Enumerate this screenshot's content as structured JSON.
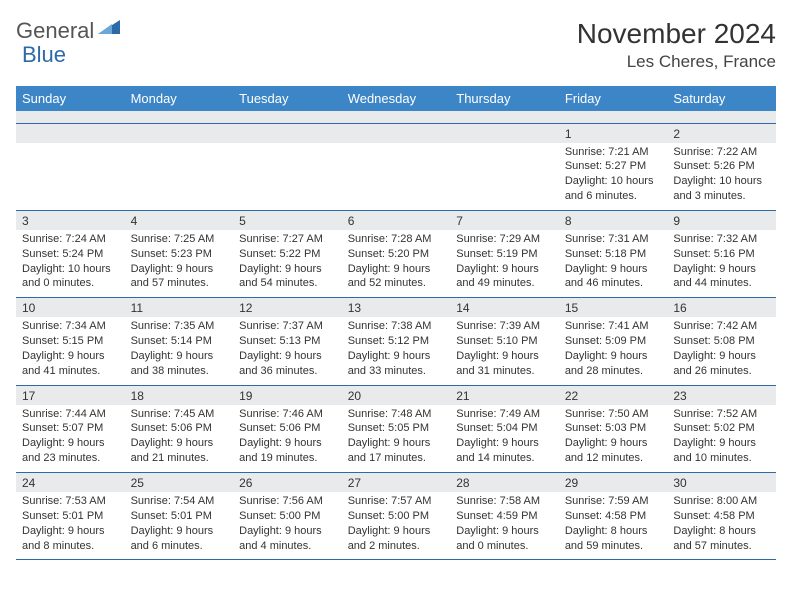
{
  "logo": {
    "text1": "General",
    "text2": "Blue"
  },
  "title": "November 2024",
  "location": "Les Cheres, France",
  "colors": {
    "header_bg": "#3c85c6",
    "header_text": "#ffffff",
    "daynum_bg": "#e8eaec",
    "border": "#2d6aa8"
  },
  "dayNames": [
    "Sunday",
    "Monday",
    "Tuesday",
    "Wednesday",
    "Thursday",
    "Friday",
    "Saturday"
  ],
  "weeks": [
    {
      "nums": [
        "",
        "",
        "",
        "",
        "",
        "1",
        "2"
      ],
      "cells": [
        null,
        null,
        null,
        null,
        null,
        {
          "sunrise": "Sunrise: 7:21 AM",
          "sunset": "Sunset: 5:27 PM",
          "daylight": "Daylight: 10 hours and 6 minutes."
        },
        {
          "sunrise": "Sunrise: 7:22 AM",
          "sunset": "Sunset: 5:26 PM",
          "daylight": "Daylight: 10 hours and 3 minutes."
        }
      ]
    },
    {
      "nums": [
        "3",
        "4",
        "5",
        "6",
        "7",
        "8",
        "9"
      ],
      "cells": [
        {
          "sunrise": "Sunrise: 7:24 AM",
          "sunset": "Sunset: 5:24 PM",
          "daylight": "Daylight: 10 hours and 0 minutes."
        },
        {
          "sunrise": "Sunrise: 7:25 AM",
          "sunset": "Sunset: 5:23 PM",
          "daylight": "Daylight: 9 hours and 57 minutes."
        },
        {
          "sunrise": "Sunrise: 7:27 AM",
          "sunset": "Sunset: 5:22 PM",
          "daylight": "Daylight: 9 hours and 54 minutes."
        },
        {
          "sunrise": "Sunrise: 7:28 AM",
          "sunset": "Sunset: 5:20 PM",
          "daylight": "Daylight: 9 hours and 52 minutes."
        },
        {
          "sunrise": "Sunrise: 7:29 AM",
          "sunset": "Sunset: 5:19 PM",
          "daylight": "Daylight: 9 hours and 49 minutes."
        },
        {
          "sunrise": "Sunrise: 7:31 AM",
          "sunset": "Sunset: 5:18 PM",
          "daylight": "Daylight: 9 hours and 46 minutes."
        },
        {
          "sunrise": "Sunrise: 7:32 AM",
          "sunset": "Sunset: 5:16 PM",
          "daylight": "Daylight: 9 hours and 44 minutes."
        }
      ]
    },
    {
      "nums": [
        "10",
        "11",
        "12",
        "13",
        "14",
        "15",
        "16"
      ],
      "cells": [
        {
          "sunrise": "Sunrise: 7:34 AM",
          "sunset": "Sunset: 5:15 PM",
          "daylight": "Daylight: 9 hours and 41 minutes."
        },
        {
          "sunrise": "Sunrise: 7:35 AM",
          "sunset": "Sunset: 5:14 PM",
          "daylight": "Daylight: 9 hours and 38 minutes."
        },
        {
          "sunrise": "Sunrise: 7:37 AM",
          "sunset": "Sunset: 5:13 PM",
          "daylight": "Daylight: 9 hours and 36 minutes."
        },
        {
          "sunrise": "Sunrise: 7:38 AM",
          "sunset": "Sunset: 5:12 PM",
          "daylight": "Daylight: 9 hours and 33 minutes."
        },
        {
          "sunrise": "Sunrise: 7:39 AM",
          "sunset": "Sunset: 5:10 PM",
          "daylight": "Daylight: 9 hours and 31 minutes."
        },
        {
          "sunrise": "Sunrise: 7:41 AM",
          "sunset": "Sunset: 5:09 PM",
          "daylight": "Daylight: 9 hours and 28 minutes."
        },
        {
          "sunrise": "Sunrise: 7:42 AM",
          "sunset": "Sunset: 5:08 PM",
          "daylight": "Daylight: 9 hours and 26 minutes."
        }
      ]
    },
    {
      "nums": [
        "17",
        "18",
        "19",
        "20",
        "21",
        "22",
        "23"
      ],
      "cells": [
        {
          "sunrise": "Sunrise: 7:44 AM",
          "sunset": "Sunset: 5:07 PM",
          "daylight": "Daylight: 9 hours and 23 minutes."
        },
        {
          "sunrise": "Sunrise: 7:45 AM",
          "sunset": "Sunset: 5:06 PM",
          "daylight": "Daylight: 9 hours and 21 minutes."
        },
        {
          "sunrise": "Sunrise: 7:46 AM",
          "sunset": "Sunset: 5:06 PM",
          "daylight": "Daylight: 9 hours and 19 minutes."
        },
        {
          "sunrise": "Sunrise: 7:48 AM",
          "sunset": "Sunset: 5:05 PM",
          "daylight": "Daylight: 9 hours and 17 minutes."
        },
        {
          "sunrise": "Sunrise: 7:49 AM",
          "sunset": "Sunset: 5:04 PM",
          "daylight": "Daylight: 9 hours and 14 minutes."
        },
        {
          "sunrise": "Sunrise: 7:50 AM",
          "sunset": "Sunset: 5:03 PM",
          "daylight": "Daylight: 9 hours and 12 minutes."
        },
        {
          "sunrise": "Sunrise: 7:52 AM",
          "sunset": "Sunset: 5:02 PM",
          "daylight": "Daylight: 9 hours and 10 minutes."
        }
      ]
    },
    {
      "nums": [
        "24",
        "25",
        "26",
        "27",
        "28",
        "29",
        "30"
      ],
      "cells": [
        {
          "sunrise": "Sunrise: 7:53 AM",
          "sunset": "Sunset: 5:01 PM",
          "daylight": "Daylight: 9 hours and 8 minutes."
        },
        {
          "sunrise": "Sunrise: 7:54 AM",
          "sunset": "Sunset: 5:01 PM",
          "daylight": "Daylight: 9 hours and 6 minutes."
        },
        {
          "sunrise": "Sunrise: 7:56 AM",
          "sunset": "Sunset: 5:00 PM",
          "daylight": "Daylight: 9 hours and 4 minutes."
        },
        {
          "sunrise": "Sunrise: 7:57 AM",
          "sunset": "Sunset: 5:00 PM",
          "daylight": "Daylight: 9 hours and 2 minutes."
        },
        {
          "sunrise": "Sunrise: 7:58 AM",
          "sunset": "Sunset: 4:59 PM",
          "daylight": "Daylight: 9 hours and 0 minutes."
        },
        {
          "sunrise": "Sunrise: 7:59 AM",
          "sunset": "Sunset: 4:58 PM",
          "daylight": "Daylight: 8 hours and 59 minutes."
        },
        {
          "sunrise": "Sunrise: 8:00 AM",
          "sunset": "Sunset: 4:58 PM",
          "daylight": "Daylight: 8 hours and 57 minutes."
        }
      ]
    }
  ]
}
